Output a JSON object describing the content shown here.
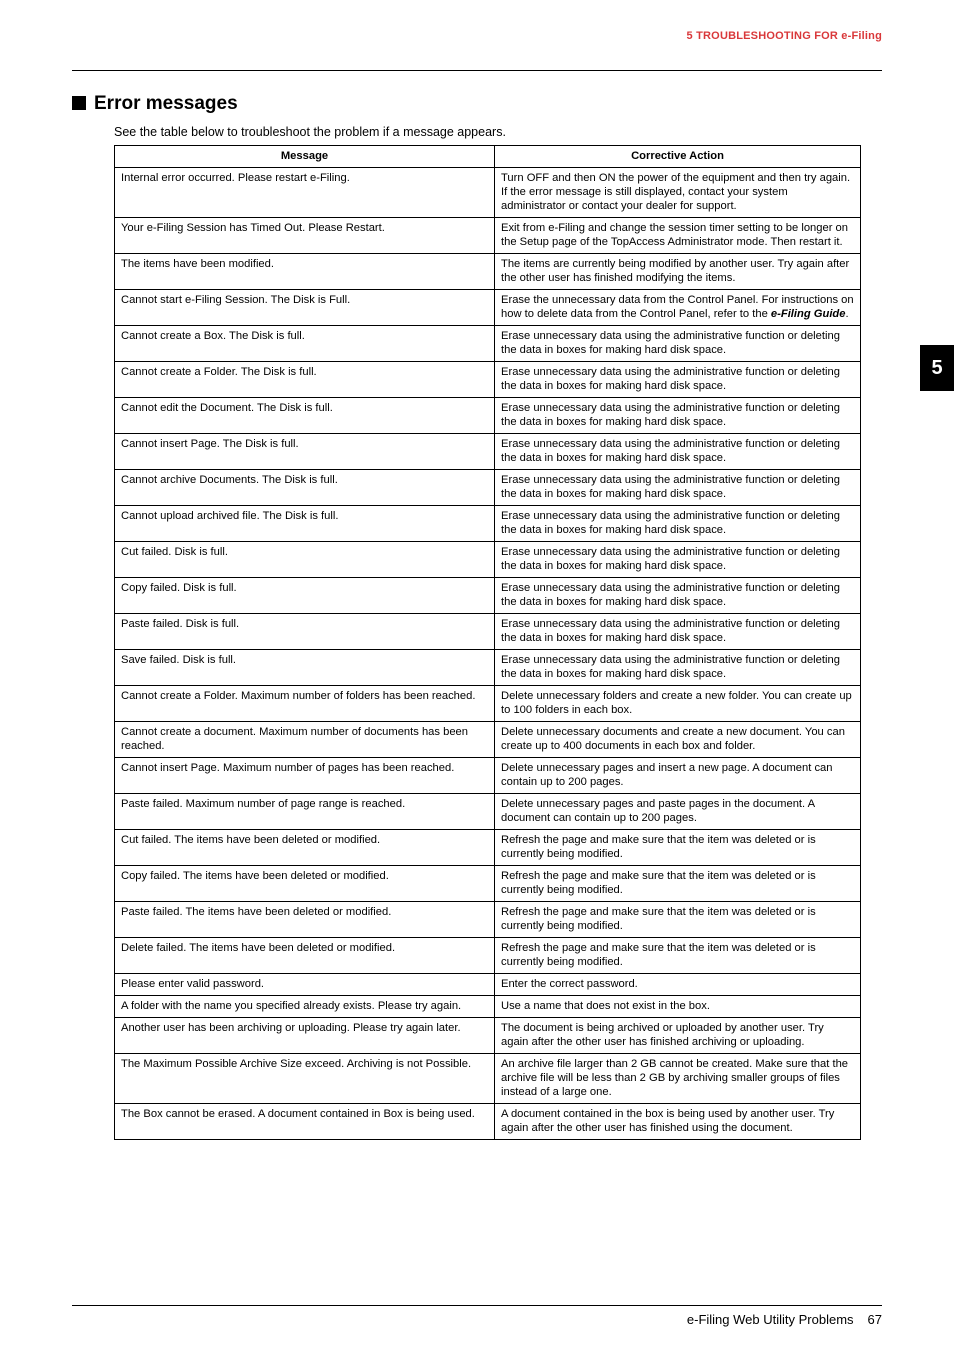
{
  "running_head": "5 TROUBLESHOOTING FOR e-Filing",
  "section_title": "Error messages",
  "intro_text": "See the table below to troubleshoot the problem if a message appears.",
  "side_tab": "5",
  "table": {
    "headers": [
      "Message",
      "Corrective Action"
    ],
    "eguide_text": "e-Filing Guide",
    "rows": [
      [
        "Internal error occurred. Please restart e-Filing.",
        "Turn OFF and then ON the power of the equipment and then try again. If the error message is still displayed, contact your system administrator or contact your dealer for support."
      ],
      [
        "Your e-Filing Session has Timed Out. Please Restart.",
        "Exit from e-Filing and change the session timer setting to be longer on the Setup page of the TopAccess Administrator mode. Then restart it."
      ],
      [
        "The items have been modified.",
        "The items are currently being modified by another user. Try again after the other user has finished modifying the items."
      ],
      [
        "Cannot start e-Filing Session. The Disk is Full.",
        "__EGUIDE__"
      ],
      [
        "Cannot create a Box. The Disk is full.",
        "Erase unnecessary data using the administrative function or deleting the data in boxes for making hard disk space."
      ],
      [
        "Cannot create a Folder. The Disk is full.",
        "Erase unnecessary data using the administrative function or deleting the data in boxes for making hard disk space."
      ],
      [
        "Cannot edit the Document. The Disk is full.",
        "Erase unnecessary data using the administrative function or deleting the data in boxes for making hard disk space."
      ],
      [
        "Cannot insert Page. The Disk is full.",
        "Erase unnecessary data using the administrative function or deleting the data in boxes for making hard disk space."
      ],
      [
        "Cannot archive Documents. The Disk is full.",
        "Erase unnecessary data using the administrative function or deleting the data in boxes for making hard disk space."
      ],
      [
        "Cannot upload archived file. The Disk is full.",
        "Erase unnecessary data using the administrative function or deleting the data in boxes for making hard disk space."
      ],
      [
        "Cut failed. Disk is full.",
        "Erase unnecessary data using the administrative function or deleting the data in boxes for making hard disk space."
      ],
      [
        "Copy failed. Disk is full.",
        "Erase unnecessary data using the administrative function or deleting the data in boxes for making hard disk space."
      ],
      [
        "Paste failed. Disk is full.",
        "Erase unnecessary data using the administrative function or deleting the data in boxes for making hard disk space."
      ],
      [
        "Save failed. Disk is full.",
        "Erase unnecessary data using the administrative function or deleting the data in boxes for making hard disk space."
      ],
      [
        "Cannot create a Folder. Maximum number of folders has been reached.",
        "Delete unnecessary folders and create a new folder. You can create up to 100 folders in each box."
      ],
      [
        "Cannot create a document. Maximum number of documents has been reached.",
        "Delete unnecessary documents and create a new document. You can create up to 400 documents in each box and folder."
      ],
      [
        "Cannot insert Page. Maximum number of pages has been reached.",
        "Delete unnecessary pages and insert a new page. A document can contain up to 200 pages."
      ],
      [
        "Paste failed. Maximum number of page range is reached.",
        "Delete unnecessary pages and paste pages in the document. A document can contain up to 200 pages."
      ],
      [
        "Cut failed. The items have been deleted or modified.",
        "Refresh the page and make sure that the item was deleted or is currently being modified."
      ],
      [
        "Copy failed. The items have been deleted or modified.",
        "Refresh the page and make sure that the item was deleted or is currently being modified."
      ],
      [
        "Paste failed. The items have been deleted or modified.",
        "Refresh the page and make sure that the item was deleted or is currently being modified."
      ],
      [
        "Delete failed. The items have been deleted or modified.",
        "Refresh the page and make sure that the item was deleted or is currently being modified."
      ],
      [
        "Please enter valid password.",
        "Enter the correct password."
      ],
      [
        "A folder with the name you specified already exists. Please try again.",
        "Use a name that does not exist in the box."
      ],
      [
        "Another user has been archiving or uploading. Please try again later.",
        "The document is being archived or uploaded by another user. Try again after the other user has finished archiving or uploading."
      ],
      [
        "The Maximum Possible Archive Size exceed. Archiving is not Possible.",
        "An archive file larger than 2 GB cannot be created. Make sure that the archive file will be less than 2 GB by archiving smaller groups of files instead of a large one."
      ],
      [
        "The Box cannot be erased. A document contained in Box is being used.",
        "A document contained in the box is being used by another user. Try again after the other user has finished using the document."
      ]
    ],
    "eguide_row_prefix": "Erase the unnecessary data from the Control Panel. For instructions on how to delete data from the Control Panel, refer to the ",
    "eguide_row_suffix": "."
  },
  "footer": {
    "title": "e-Filing Web Utility Problems",
    "page": "67"
  },
  "colors": {
    "accent_red": "#d9383a"
  }
}
